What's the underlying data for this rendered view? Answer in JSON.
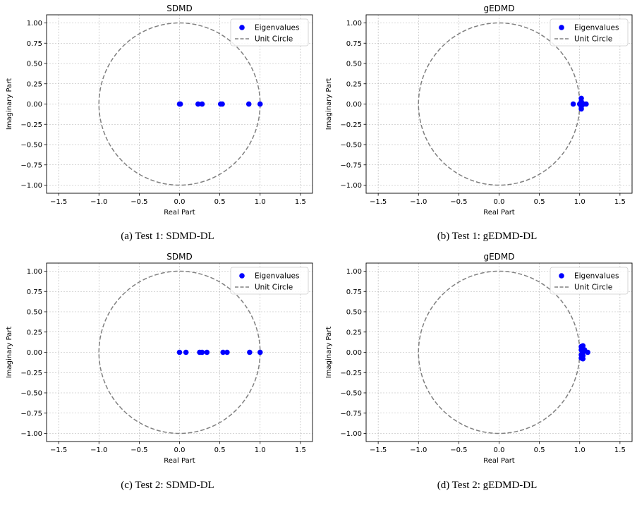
{
  "chart_data": [
    {
      "id": "a",
      "type": "scatter",
      "title": "SDMD",
      "xlabel": "Real Part",
      "ylabel": "Imaginary Part",
      "caption": "(a) Test 1: SDMD-DL",
      "xlim": [
        -1.65,
        1.65
      ],
      "ylim": [
        -1.1,
        1.1
      ],
      "xticks": [
        -1.5,
        -1.0,
        -0.5,
        0.0,
        0.5,
        1.0,
        1.5
      ],
      "xtick_labels": [
        "−1.5",
        "−1.0",
        "−0.5",
        "0.0",
        "0.5",
        "1.0",
        "1.5"
      ],
      "yticks": [
        1.0,
        0.75,
        0.5,
        0.25,
        0.0,
        -0.25,
        -0.5,
        -0.75,
        -1.0
      ],
      "ytick_labels": [
        "1.00",
        "0.75",
        "0.50",
        "0.25",
        "0.00",
        "−0.25",
        "−0.50",
        "−0.75",
        "−1.00"
      ],
      "grid": true,
      "legend_position": "top-right",
      "series": [
        {
          "name": "Eigenvalues",
          "kind": "points",
          "color": "#0000ff",
          "x": [
            0.0,
            0.01,
            0.23,
            0.28,
            0.51,
            0.53,
            0.86,
            1.0
          ],
          "y": [
            0,
            0,
            0,
            0,
            0,
            0,
            0,
            0
          ]
        },
        {
          "name": "Unit Circle",
          "kind": "circle",
          "color": "#808080",
          "radius": 1
        }
      ]
    },
    {
      "id": "b",
      "type": "scatter",
      "title": "gEDMD",
      "xlabel": "Real Part",
      "ylabel": "Imaginary Part",
      "caption": "(b) Test 1: gEDMD-DL",
      "xlim": [
        -1.65,
        1.65
      ],
      "ylim": [
        -1.1,
        1.1
      ],
      "xticks": [
        -1.5,
        -1.0,
        -0.5,
        0.0,
        0.5,
        1.0,
        1.5
      ],
      "xtick_labels": [
        "−1.5",
        "−1.0",
        "−0.5",
        "0.0",
        "0.5",
        "1.0",
        "1.5"
      ],
      "yticks": [
        1.0,
        0.75,
        0.5,
        0.25,
        0.0,
        -0.25,
        -0.5,
        -0.75,
        -1.0
      ],
      "ytick_labels": [
        "1.00",
        "0.75",
        "0.50",
        "0.25",
        "0.00",
        "−0.25",
        "−0.50",
        "−0.75",
        "−1.00"
      ],
      "grid": true,
      "legend_position": "top-right",
      "series": [
        {
          "name": "Eigenvalues",
          "kind": "points",
          "color": "#0000ff",
          "x": [
            0.92,
            1.0,
            1.02,
            1.02,
            1.02,
            1.02,
            1.02,
            1.05,
            1.08
          ],
          "y": [
            0.0,
            0.0,
            0.07,
            0.03,
            0.0,
            -0.03,
            -0.06,
            0.0,
            0.0
          ]
        },
        {
          "name": "Unit Circle",
          "kind": "circle",
          "color": "#808080",
          "radius": 1
        }
      ]
    },
    {
      "id": "c",
      "type": "scatter",
      "title": "SDMD",
      "xlabel": "Real Part",
      "ylabel": "Imaginary Part",
      "caption": "(c) Test 2: SDMD-DL",
      "xlim": [
        -1.65,
        1.65
      ],
      "ylim": [
        -1.1,
        1.1
      ],
      "xticks": [
        -1.5,
        -1.0,
        -0.5,
        0.0,
        0.5,
        1.0,
        1.5
      ],
      "xtick_labels": [
        "−1.5",
        "−1.0",
        "−0.5",
        "0.0",
        "0.5",
        "1.0",
        "1.5"
      ],
      "yticks": [
        1.0,
        0.75,
        0.5,
        0.25,
        0.0,
        -0.25,
        -0.5,
        -0.75,
        -1.0
      ],
      "ytick_labels": [
        "1.00",
        "0.75",
        "0.50",
        "0.25",
        "0.00",
        "−0.25",
        "−0.50",
        "−0.75",
        "−1.00"
      ],
      "grid": true,
      "legend_position": "top-right",
      "series": [
        {
          "name": "Eigenvalues",
          "kind": "points",
          "color": "#0000ff",
          "x": [
            0.0,
            0.08,
            0.25,
            0.28,
            0.34,
            0.54,
            0.59,
            0.87,
            1.0
          ],
          "y": [
            0,
            0,
            0,
            0,
            0,
            0,
            0,
            0,
            0
          ]
        },
        {
          "name": "Unit Circle",
          "kind": "circle",
          "color": "#808080",
          "radius": 1
        }
      ]
    },
    {
      "id": "d",
      "type": "scatter",
      "title": "gEDMD",
      "xlabel": "Real Part",
      "ylabel": "Imaginary Part",
      "caption": "(d) Test 2: gEDMD-DL",
      "xlim": [
        -1.65,
        1.65
      ],
      "ylim": [
        -1.1,
        1.1
      ],
      "xticks": [
        -1.5,
        -1.0,
        -0.5,
        0.0,
        0.5,
        1.0,
        1.5
      ],
      "xtick_labels": [
        "−1.5",
        "−1.0",
        "−0.5",
        "0.0",
        "0.5",
        "1.0",
        "1.5"
      ],
      "yticks": [
        1.0,
        0.75,
        0.5,
        0.25,
        0.0,
        -0.25,
        -0.5,
        -0.75,
        -1.0
      ],
      "ytick_labels": [
        "1.00",
        "0.75",
        "0.50",
        "0.25",
        "0.00",
        "−0.25",
        "−0.50",
        "−0.75",
        "−1.00"
      ],
      "grid": true,
      "legend_position": "top-right",
      "series": [
        {
          "name": "Eigenvalues",
          "kind": "points",
          "color": "#0000ff",
          "x": [
            1.02,
            1.02,
            1.02,
            1.02,
            1.04,
            1.04,
            1.04,
            1.04,
            1.06,
            1.1
          ],
          "y": [
            0.07,
            0.03,
            -0.03,
            -0.07,
            0.08,
            0.0,
            -0.04,
            -0.08,
            0.03,
            0.0
          ]
        },
        {
          "name": "Unit Circle",
          "kind": "circle",
          "color": "#808080",
          "radius": 1
        }
      ]
    }
  ]
}
